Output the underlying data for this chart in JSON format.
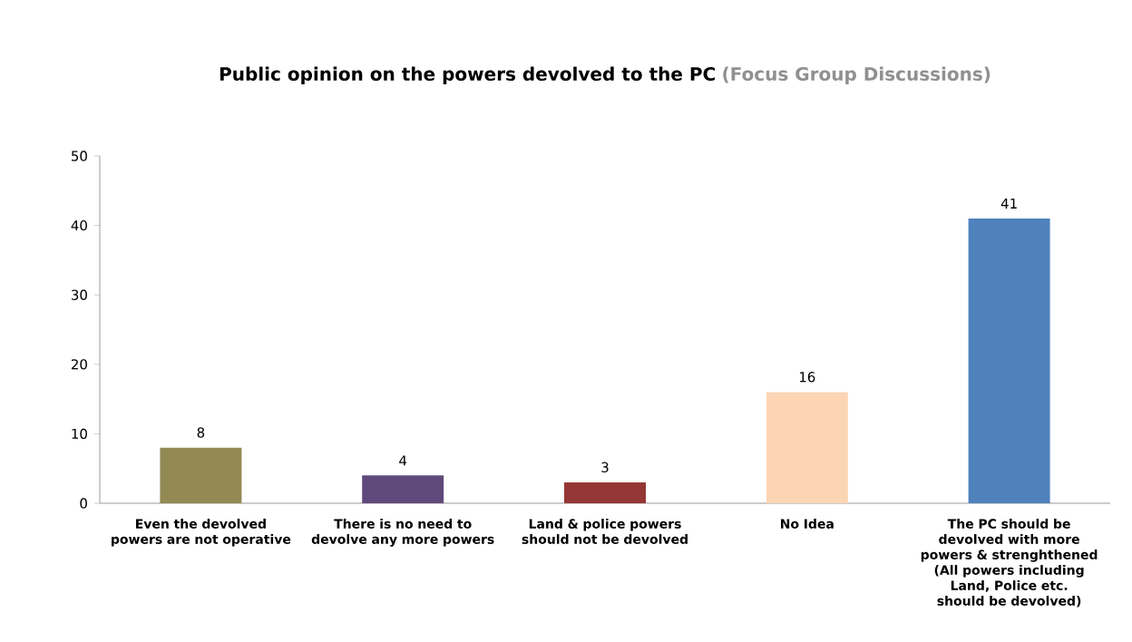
{
  "chart_data": {
    "type": "bar",
    "title": "Public  opinion on the powers devolved to the PC",
    "subtitle": "(Focus Group Discussions)",
    "categories": [
      "Even the devolved powers are not operative",
      "There is no need to devolve any more powers",
      "Land & police powers should not be devolved",
      "No Idea",
      "The PC should be devolved with more powers & strenghthened (All powers including Land, Police etc. should be devolved)"
    ],
    "values": [
      8,
      4,
      3,
      16,
      41
    ],
    "colors": [
      "#938953",
      "#604a7b",
      "#953735",
      "#fcd5b5",
      "#4f81bd"
    ],
    "ylim": [
      0,
      50
    ],
    "yticks": [
      0,
      10,
      20,
      30,
      40,
      50
    ],
    "grid": false,
    "data_labels": true
  }
}
